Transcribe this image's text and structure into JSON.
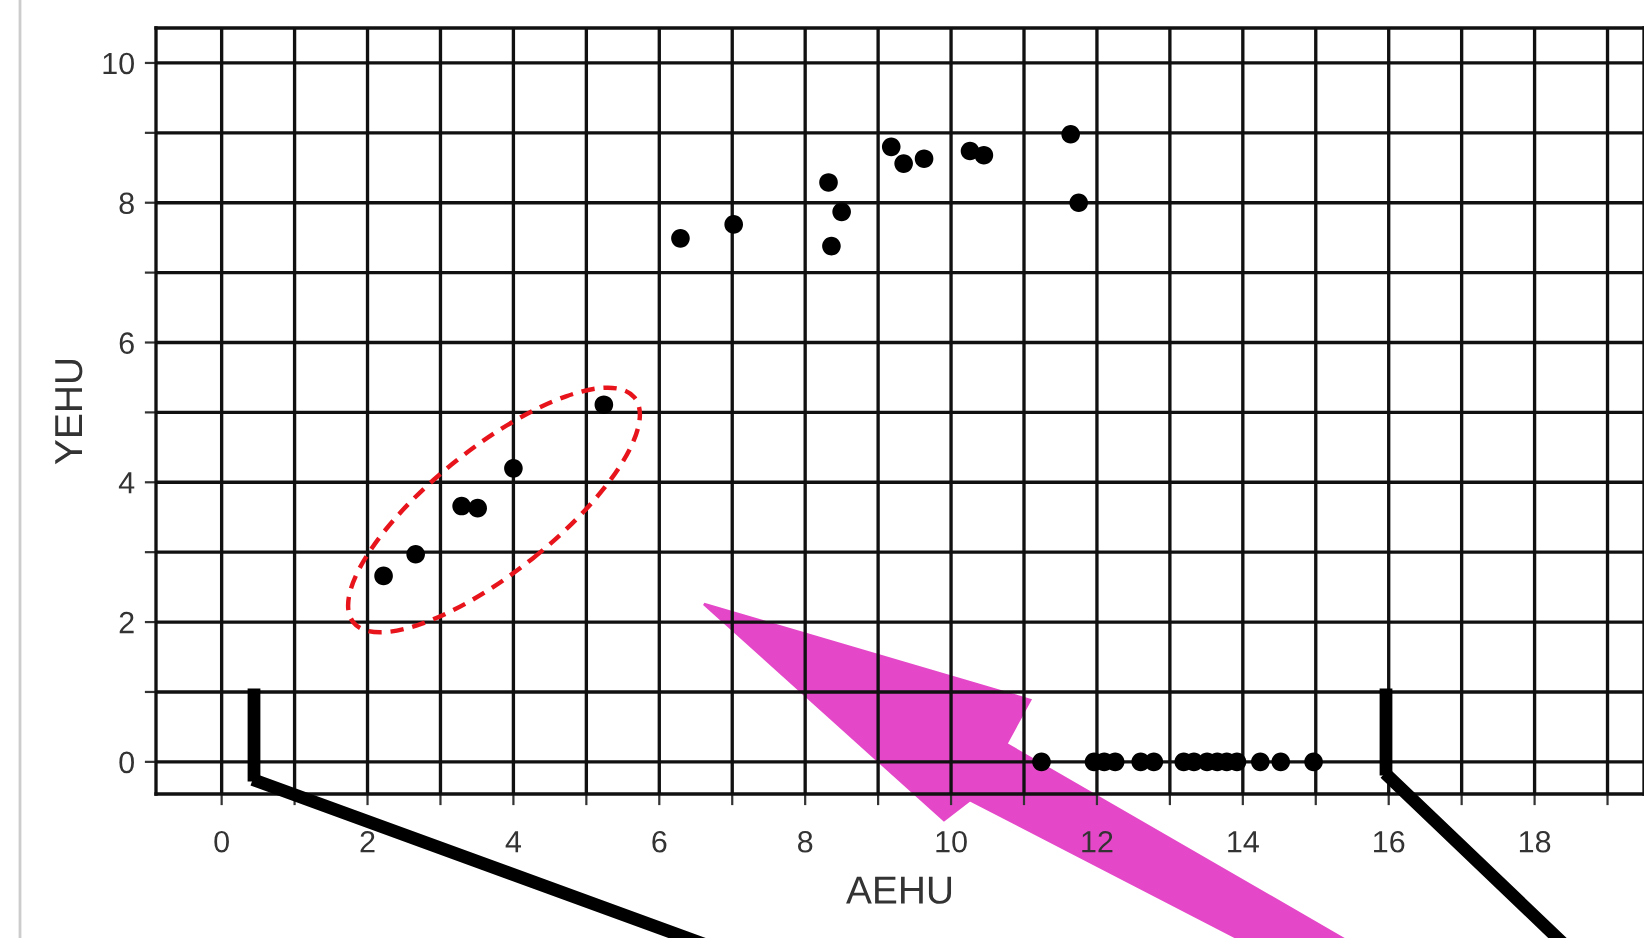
{
  "chart_data": {
    "type": "scatter",
    "xlabel": "AEHU",
    "ylabel": "YEHU",
    "x": [
      2.22,
      2.66,
      3.29,
      3.51,
      4.0,
      5.24,
      6.29,
      7.02,
      8.32,
      8.5,
      8.36,
      9.18,
      9.35,
      9.63,
      10.26,
      10.45,
      11.64,
      11.75,
      11.24,
      11.96,
      12.1,
      12.25,
      12.6,
      12.78,
      13.19,
      13.33,
      13.51,
      13.65,
      13.78,
      13.92,
      14.24,
      14.52,
      14.97
    ],
    "series": [
      {
        "color": "#000000",
        "values": [
          2.66,
          2.97,
          3.66,
          3.63,
          4.2,
          5.11,
          7.49,
          7.69,
          8.29,
          7.87,
          7.38,
          8.8,
          8.56,
          8.63,
          8.74,
          8.68,
          8.98,
          8.0,
          0,
          0,
          0,
          0,
          0,
          0,
          0,
          0,
          0,
          0,
          0,
          0,
          0,
          0,
          0
        ]
      }
    ],
    "xlim": [
      -0.9,
      19.5
    ],
    "ylim": [
      -0.46,
      10.5
    ],
    "xticks": [
      0,
      {
        "value": 1,
        "label": null
      },
      2,
      {
        "value": 3,
        "label": null
      },
      4,
      {
        "value": 5,
        "label": null
      },
      6,
      {
        "value": 7,
        "label": null
      },
      8,
      {
        "value": 9,
        "label": null
      },
      10,
      {
        "value": 11,
        "label": null
      },
      12,
      {
        "value": 13,
        "label": null
      },
      14,
      {
        "value": 15,
        "label": null
      },
      16,
      {
        "value": 17,
        "label": null
      },
      18,
      {
        "value": 19,
        "label": null
      }
    ],
    "yticks": [
      0,
      {
        "value": 1,
        "label": null
      },
      2,
      {
        "value": 3,
        "label": null
      },
      4,
      {
        "value": 5,
        "label": null
      },
      6,
      {
        "value": 7,
        "label": null
      },
      8,
      {
        "value": 9,
        "label": null
      },
      10
    ],
    "grid": true,
    "marker": "circle"
  }
}
